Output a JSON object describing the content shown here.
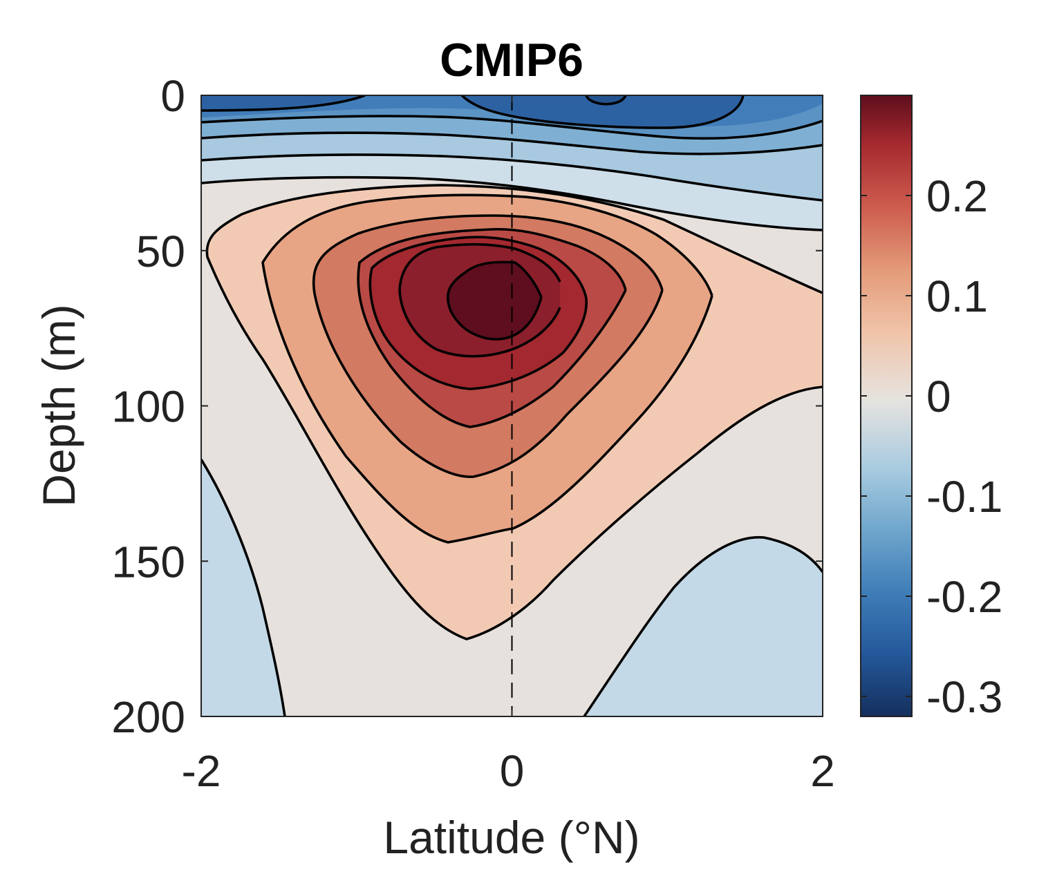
{
  "chart_data": {
    "type": "contour",
    "title": "CMIP6",
    "xlabel": "Latitude (°N)",
    "ylabel": "Depth (m)",
    "xlim": [
      -2,
      2
    ],
    "ylim": [
      0,
      200
    ],
    "y_reversed": true,
    "x_ticks": [
      "-2",
      "0",
      "2"
    ],
    "y_ticks": [
      "0",
      "50",
      "100",
      "150",
      "200"
    ],
    "reference_line": {
      "x": 0,
      "style": "dashed"
    },
    "colorbar": {
      "range": [
        -0.32,
        0.3
      ],
      "ticks": [
        "-0.3",
        "-0.2",
        "-0.1",
        "0",
        "0.1",
        "0.2"
      ],
      "tick_values": [
        -0.3,
        -0.2,
        -0.1,
        0,
        0.1,
        0.2
      ],
      "colormap": "diverging red-blue"
    },
    "contour_levels": [
      -0.3,
      -0.25,
      -0.2,
      -0.15,
      -0.1,
      -0.05,
      0,
      0.05,
      0.1,
      0.15,
      0.2,
      0.25,
      0.3
    ],
    "core_maximum": {
      "latitude": -0.15,
      "depth": 65,
      "value": 0.3
    },
    "surface_minimum": {
      "latitude": 0.6,
      "depth": 0,
      "value": -0.25
    },
    "grid": false
  }
}
